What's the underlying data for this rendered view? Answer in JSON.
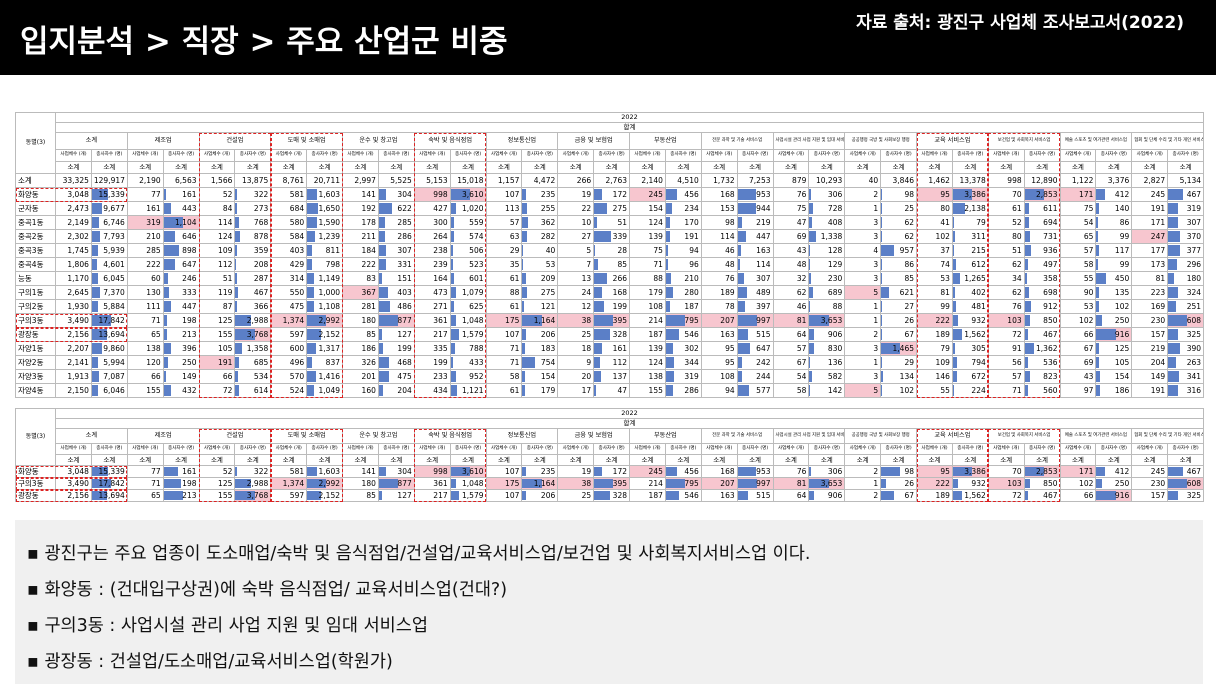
{
  "header": {
    "title": "입지분석 > 직장 > 주요 산업군 비중",
    "source": "자료 출처: 광진구 사업체 조사보고서(2022)"
  },
  "tables": [
    {
      "row_header": "동별(3)",
      "year": "2022",
      "total": "합계",
      "groups": [
        "소계",
        "제조업",
        "건설업",
        "도매 및 소매업",
        "운수 및 창고업",
        "숙박 및 음식점업",
        "정보통신업",
        "금융 및 보험업",
        "부동산업",
        "전문 과학 및 기술 서비스업",
        "사업시설 관리 사업 지원 및 임대 서비스업",
        "공공행정 국방 및 사회보장 행정",
        "교육 서비스업",
        "보건업 및 사회복지 서비스업",
        "예술 스포츠 및 여가관련 서비스업",
        "협회 및 단체 수리 및 기타 개인 서비스업"
      ],
      "sub_headers": [
        "사업체수 (개)",
        "종사자수 (명)"
      ],
      "subtotal_label": "소계",
      "rows": [
        {
          "label": "소계",
          "values": [
            "33,325",
            "129,917",
            "2,190",
            "6,563",
            "1,566",
            "13,875",
            "8,761",
            "20,711",
            "2,997",
            "5,525",
            "5,153",
            "15,018",
            "1,157",
            "4,472",
            "266",
            "2,763",
            "2,140",
            "4,510",
            "1,732",
            "7,253",
            "879",
            "10,293",
            "40",
            "3,846",
            "1,462",
            "13,378",
            "998",
            "12,890",
            "1,122",
            "3,376",
            "2,827",
            "5,134"
          ]
        },
        {
          "label": "화양동",
          "values": [
            "3,048",
            "15,339",
            "77",
            "161",
            "52",
            "322",
            "581",
            "1,603",
            "141",
            "304",
            "998",
            "3,610",
            "107",
            "235",
            "19",
            "172",
            "245",
            "456",
            "168",
            "953",
            "76",
            "306",
            "2",
            "98",
            "95",
            "3,386",
            "70",
            "2,853",
            "171",
            "412",
            "245",
            "467"
          ]
        },
        {
          "label": "군자동",
          "values": [
            "2,473",
            "9,677",
            "161",
            "443",
            "84",
            "273",
            "684",
            "1,650",
            "192",
            "622",
            "427",
            "1,020",
            "113",
            "255",
            "22",
            "275",
            "154",
            "234",
            "153",
            "944",
            "75",
            "728",
            "1",
            "25",
            "80",
            "2,138",
            "61",
            "611",
            "75",
            "140",
            "191",
            "319"
          ]
        },
        {
          "label": "중곡1동",
          "values": [
            "2,149",
            "6,746",
            "319",
            "1,104",
            "114",
            "768",
            "580",
            "1,590",
            "178",
            "285",
            "300",
            "559",
            "57",
            "362",
            "10",
            "51",
            "124",
            "170",
            "98",
            "219",
            "47",
            "408",
            "3",
            "62",
            "41",
            "79",
            "52",
            "694",
            "54",
            "86",
            "171",
            "307"
          ]
        },
        {
          "label": "중곡2동",
          "values": [
            "2,302",
            "7,793",
            "210",
            "646",
            "124",
            "878",
            "584",
            "1,239",
            "211",
            "286",
            "264",
            "574",
            "63",
            "282",
            "27",
            "339",
            "139",
            "191",
            "114",
            "447",
            "69",
            "1,338",
            "3",
            "62",
            "102",
            "311",
            "80",
            "731",
            "65",
            "99",
            "247",
            "370"
          ]
        },
        {
          "label": "중곡3동",
          "values": [
            "1,745",
            "5,939",
            "285",
            "898",
            "109",
            "359",
            "403",
            "811",
            "184",
            "307",
            "238",
            "506",
            "29",
            "40",
            "5",
            "28",
            "75",
            "94",
            "46",
            "163",
            "43",
            "128",
            "4",
            "957",
            "37",
            "215",
            "51",
            "936",
            "57",
            "117",
            "177",
            "377"
          ]
        },
        {
          "label": "중곡4동",
          "values": [
            "1,806",
            "4,601",
            "222",
            "647",
            "112",
            "208",
            "429",
            "798",
            "222",
            "331",
            "239",
            "523",
            "35",
            "53",
            "7",
            "85",
            "71",
            "96",
            "48",
            "114",
            "48",
            "129",
            "3",
            "86",
            "74",
            "612",
            "62",
            "497",
            "58",
            "99",
            "173",
            "296"
          ]
        },
        {
          "label": "능동",
          "values": [
            "1,170",
            "6,045",
            "60",
            "246",
            "51",
            "287",
            "314",
            "1,149",
            "83",
            "151",
            "164",
            "601",
            "61",
            "209",
            "13",
            "266",
            "88",
            "210",
            "76",
            "307",
            "32",
            "230",
            "3",
            "85",
            "53",
            "1,265",
            "34",
            "358",
            "55",
            "450",
            "81",
            "180"
          ]
        },
        {
          "label": "구의1동",
          "values": [
            "2,645",
            "7,370",
            "130",
            "333",
            "119",
            "467",
            "550",
            "1,000",
            "367",
            "403",
            "473",
            "1,079",
            "88",
            "275",
            "24",
            "168",
            "179",
            "280",
            "189",
            "489",
            "62",
            "689",
            "5",
            "621",
            "81",
            "402",
            "62",
            "698",
            "90",
            "135",
            "223",
            "324"
          ]
        },
        {
          "label": "구의2동",
          "values": [
            "1,930",
            "5,884",
            "111",
            "447",
            "87",
            "366",
            "475",
            "1,108",
            "281",
            "486",
            "271",
            "625",
            "61",
            "121",
            "12",
            "199",
            "108",
            "187",
            "78",
            "397",
            "46",
            "88",
            "1",
            "27",
            "99",
            "481",
            "76",
            "912",
            "53",
            "102",
            "169",
            "251"
          ]
        },
        {
          "label": "구의3동",
          "values": [
            "3,490",
            "17,842",
            "71",
            "198",
            "125",
            "2,988",
            "1,374",
            "2,992",
            "180",
            "877",
            "361",
            "1,048",
            "175",
            "1,164",
            "38",
            "395",
            "214",
            "795",
            "207",
            "997",
            "81",
            "3,653",
            "1",
            "26",
            "222",
            "932",
            "103",
            "850",
            "102",
            "250",
            "230",
            "608"
          ]
        },
        {
          "label": "광장동",
          "values": [
            "2,156",
            "13,694",
            "65",
            "213",
            "155",
            "3,768",
            "597",
            "2,152",
            "85",
            "127",
            "217",
            "1,579",
            "107",
            "206",
            "25",
            "328",
            "187",
            "546",
            "163",
            "515",
            "64",
            "906",
            "2",
            "67",
            "189",
            "1,562",
            "72",
            "467",
            "66",
            "916",
            "157",
            "325"
          ]
        },
        {
          "label": "자양1동",
          "values": [
            "2,207",
            "9,860",
            "138",
            "396",
            "105",
            "1,358",
            "600",
            "1,317",
            "186",
            "199",
            "335",
            "788",
            "71",
            "183",
            "18",
            "161",
            "139",
            "302",
            "95",
            "647",
            "57",
            "830",
            "3",
            "1,465",
            "79",
            "305",
            "91",
            "1,362",
            "67",
            "125",
            "219",
            "390"
          ]
        },
        {
          "label": "자양2동",
          "values": [
            "2,141",
            "5,994",
            "120",
            "250",
            "191",
            "685",
            "496",
            "837",
            "326",
            "468",
            "199",
            "433",
            "71",
            "754",
            "9",
            "112",
            "124",
            "344",
            "95",
            "242",
            "67",
            "136",
            "1",
            "29",
            "109",
            "794",
            "56",
            "536",
            "69",
            "105",
            "204",
            "263"
          ]
        },
        {
          "label": "자양3동",
          "values": [
            "1,913",
            "7,087",
            "66",
            "149",
            "66",
            "534",
            "570",
            "1,416",
            "201",
            "475",
            "233",
            "952",
            "58",
            "154",
            "20",
            "137",
            "138",
            "319",
            "108",
            "244",
            "54",
            "582",
            "3",
            "134",
            "146",
            "672",
            "57",
            "823",
            "43",
            "154",
            "149",
            "341"
          ]
        },
        {
          "label": "자양4동",
          "values": [
            "2,150",
            "6,046",
            "155",
            "432",
            "72",
            "614",
            "524",
            "1,049",
            "160",
            "204",
            "434",
            "1,121",
            "61",
            "179",
            "17",
            "47",
            "155",
            "286",
            "94",
            "577",
            "58",
            "142",
            "5",
            "102",
            "55",
            "224",
            "71",
            "560",
            "97",
            "186",
            "191",
            "316"
          ]
        }
      ]
    },
    {
      "row_header": "동별(3)",
      "year": "2022",
      "total": "합계",
      "groups": [
        "소계",
        "제조업",
        "건설업",
        "도매 및 소매업",
        "운수 및 창고업",
        "숙박 및 음식점업",
        "정보통신업",
        "금융 및 보험업",
        "부동산업",
        "전문 과학 및 기술 서비스업",
        "사업시설 관리 사업 지원 및 임대 서비스업",
        "공공행정 국방 및 사회보장 행정",
        "교육 서비스업",
        "보건업 및 사회복지 서비스업",
        "예술 스포츠 및 여가관련 서비스업",
        "협회 및 단체 수리 및 기타 개인 서비스업"
      ],
      "sub_headers": [
        "사업체수 (개)",
        "종사자수 (명)"
      ],
      "subtotal_label": "소계",
      "rows": [
        {
          "label": "화양동",
          "values": [
            "3,048",
            "15,339",
            "77",
            "161",
            "52",
            "322",
            "581",
            "1,603",
            "141",
            "304",
            "998",
            "3,610",
            "107",
            "235",
            "19",
            "172",
            "245",
            "456",
            "168",
            "953",
            "76",
            "306",
            "2",
            "98",
            "95",
            "3,386",
            "70",
            "2,853",
            "171",
            "412",
            "245",
            "467"
          ]
        },
        {
          "label": "구의3동",
          "values": [
            "3,490",
            "17,842",
            "71",
            "198",
            "125",
            "2,988",
            "1,374",
            "2,992",
            "180",
            "877",
            "361",
            "1,048",
            "175",
            "1,164",
            "38",
            "395",
            "214",
            "795",
            "207",
            "997",
            "81",
            "3,653",
            "1",
            "26",
            "222",
            "932",
            "103",
            "850",
            "102",
            "250",
            "230",
            "608"
          ]
        },
        {
          "label": "광장동",
          "values": [
            "2,156",
            "13,694",
            "65",
            "213",
            "155",
            "3,768",
            "597",
            "2,152",
            "85",
            "127",
            "217",
            "1,579",
            "107",
            "206",
            "25",
            "328",
            "187",
            "546",
            "163",
            "515",
            "64",
            "906",
            "2",
            "67",
            "189",
            "1,562",
            "72",
            "467",
            "66",
            "916",
            "157",
            "325"
          ]
        }
      ]
    }
  ],
  "notes": [
    "광진구는 주요 업종이  도소매업/숙박 및 음식점업/건설업/교육서비스업/보건업 및 사회복지서비스업 이다.",
    "화양동 : (건대입구상권)에  숙박 음식점업/ 교육서비스업(건대?)",
    "구의3동 : 사업시설 관리 사업 지원 및 임대 서비스업",
    "광장동 : 건설업/도소매업/교육서비스업(학원가)"
  ]
}
